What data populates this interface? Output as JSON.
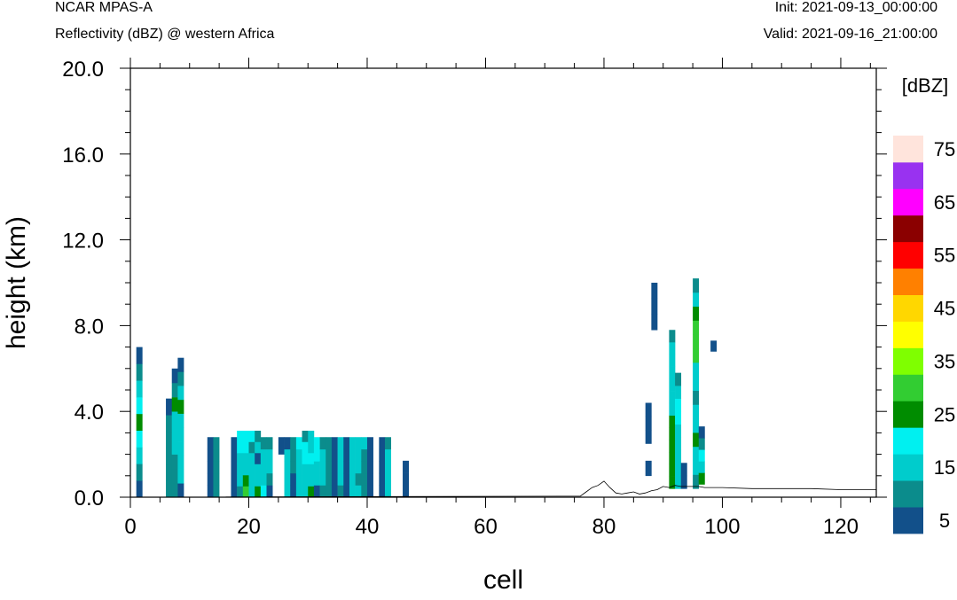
{
  "header": {
    "model": "NCAR MPAS-A",
    "field": "Reflectivity (dBZ) @ western Africa",
    "init": "Init: 2021-09-13_00:00:00",
    "valid": "Valid: 2021-09-16_21:00:00"
  },
  "chart_data": {
    "type": "heatmap",
    "title": "Reflectivity (dBZ) @ western Africa",
    "xlabel": "cell",
    "ylabel": "height (km)",
    "xlim": [
      0,
      126
    ],
    "ylim": [
      0,
      20
    ],
    "xticks": [
      "0",
      "20",
      "40",
      "60",
      "80",
      "100",
      "120"
    ],
    "yticks": [
      "0.0",
      "4.0",
      "8.0",
      "12.0",
      "16.0",
      "20.0"
    ],
    "colorbar": {
      "unit": "[dBZ]",
      "levels": [
        5,
        10,
        15,
        20,
        25,
        30,
        35,
        40,
        45,
        50,
        55,
        60,
        65,
        70,
        75
      ],
      "labels": [
        "5",
        "15",
        "25",
        "35",
        "45",
        "55",
        "65",
        "75"
      ],
      "colors": [
        "#12508a",
        "#0b8c8c",
        "#00cccc",
        "#00f0f0",
        "#008c00",
        "#32cd32",
        "#7fff00",
        "#ffff00",
        "#ffd700",
        "#ff8000",
        "#ff0000",
        "#8b0000",
        "#ff00ff",
        "#9932f0",
        "#ffe4dc"
      ]
    },
    "columns": [
      {
        "x": 1,
        "y0": 0.0,
        "y1": 7.0,
        "dbz": [
          5,
          10,
          15,
          20,
          25,
          20,
          15,
          10,
          5
        ]
      },
      {
        "x": 6,
        "y0": 0.0,
        "y1": 4.6,
        "dbz": [
          10,
          10,
          10,
          10,
          10,
          5
        ]
      },
      {
        "x": 7,
        "y0": 0.0,
        "y1": 6.0,
        "dbz": [
          10,
          10,
          10,
          15,
          15,
          15,
          25,
          10,
          5
        ]
      },
      {
        "x": 8,
        "y0": 0.0,
        "y1": 6.5,
        "dbz": [
          5,
          15,
          15,
          15,
          15,
          15,
          25,
          15,
          10,
          5
        ]
      },
      {
        "x": 13,
        "y0": 0.0,
        "y1": 2.8,
        "dbz": [
          5,
          5,
          5,
          5,
          5
        ]
      },
      {
        "x": 14,
        "y0": 0.0,
        "y1": 2.8,
        "dbz": [
          10,
          10,
          10,
          10,
          10
        ]
      },
      {
        "x": 17,
        "y0": 0.0,
        "y1": 2.8,
        "dbz": [
          5,
          5,
          5,
          5,
          5
        ]
      },
      {
        "x": 18,
        "y0": 0.0,
        "y1": 3.1,
        "dbz": [
          10,
          15,
          15,
          15,
          20,
          20
        ]
      },
      {
        "x": 19,
        "y0": 0.0,
        "y1": 3.1,
        "dbz": [
          30,
          25,
          15,
          15,
          20,
          20
        ]
      },
      {
        "x": 20,
        "y0": 0.0,
        "y1": 3.1,
        "dbz": [
          15,
          15,
          15,
          15,
          10,
          20
        ]
      },
      {
        "x": 21,
        "y0": 0.0,
        "y1": 3.1,
        "dbz": [
          25,
          15,
          15,
          5,
          15,
          10
        ]
      },
      {
        "x": 22,
        "y0": 0.0,
        "y1": 2.8,
        "dbz": [
          20,
          15,
          15,
          15,
          10
        ]
      },
      {
        "x": 23,
        "y0": 0.0,
        "y1": 2.8,
        "dbz": [
          5,
          10,
          15,
          15,
          10
        ]
      },
      {
        "x": 25,
        "y0": 2.0,
        "y1": 2.8,
        "dbz": [
          5
        ]
      },
      {
        "x": 26,
        "y0": 0.0,
        "y1": 2.8,
        "dbz": [
          15,
          15,
          15,
          15,
          5
        ]
      },
      {
        "x": 27,
        "y0": 0.0,
        "y1": 2.8,
        "dbz": [
          5,
          5,
          10,
          10,
          10
        ]
      },
      {
        "x": 28,
        "y0": 0.0,
        "y1": 2.8,
        "dbz": [
          15,
          15,
          15,
          15,
          20
        ]
      },
      {
        "x": 29,
        "y0": 0.0,
        "y1": 3.1,
        "dbz": [
          15,
          15,
          15,
          20,
          20,
          10
        ]
      },
      {
        "x": 30,
        "y0": 0.0,
        "y1": 3.1,
        "dbz": [
          25,
          15,
          15,
          20,
          15,
          15
        ]
      },
      {
        "x": 31,
        "y0": 0.0,
        "y1": 2.8,
        "dbz": [
          5,
          15,
          15,
          20,
          20
        ]
      },
      {
        "x": 32,
        "y0": 0.0,
        "y1": 2.8,
        "dbz": [
          10,
          15,
          15,
          15,
          10
        ]
      },
      {
        "x": 33,
        "y0": 0.0,
        "y1": 2.8,
        "dbz": [
          10,
          10,
          10,
          10,
          10
        ]
      },
      {
        "x": 34,
        "y0": 0.0,
        "y1": 2.8,
        "dbz": [
          5,
          5,
          5,
          5,
          5
        ]
      },
      {
        "x": 35,
        "y0": 0.0,
        "y1": 2.8,
        "dbz": [
          10,
          15,
          15,
          15,
          15
        ]
      },
      {
        "x": 36,
        "y0": 0.0,
        "y1": 2.8,
        "dbz": [
          5,
          5,
          5,
          5,
          5
        ]
      },
      {
        "x": 37,
        "y0": 0.0,
        "y1": 2.8,
        "dbz": [
          15,
          15,
          15,
          15,
          15
        ]
      },
      {
        "x": 38,
        "y0": 0.0,
        "y1": 2.8,
        "dbz": [
          15,
          10,
          15,
          15,
          15
        ]
      },
      {
        "x": 39,
        "y0": 0.0,
        "y1": 2.8,
        "dbz": [
          10,
          10,
          10,
          10,
          15
        ]
      },
      {
        "x": 40,
        "y0": 0.0,
        "y1": 2.8,
        "dbz": [
          5,
          5,
          5,
          5,
          5
        ]
      },
      {
        "x": 42,
        "y0": 0.0,
        "y1": 2.8,
        "dbz": [
          5,
          5,
          5,
          5,
          5
        ]
      },
      {
        "x": 43,
        "y0": 0.0,
        "y1": 2.8,
        "dbz": [
          15,
          15,
          15,
          15,
          10
        ]
      },
      {
        "x": 46,
        "y0": 0.0,
        "y1": 1.7,
        "dbz": [
          5,
          5,
          5
        ]
      },
      {
        "x": 87,
        "y0": 2.5,
        "y1": 4.4,
        "dbz": [
          5,
          5,
          5
        ]
      },
      {
        "x": 87,
        "y0": 1.0,
        "y1": 1.7,
        "dbz": [
          5
        ]
      },
      {
        "x": 88,
        "y0": 7.8,
        "y1": 10.0,
        "dbz": [
          5,
          5,
          5
        ]
      },
      {
        "x": 91,
        "y0": 0.4,
        "y1": 7.8,
        "dbz": [
          25,
          25,
          25,
          25,
          25,
          25,
          15,
          15,
          15,
          15,
          15,
          15,
          10
        ]
      },
      {
        "x": 92,
        "y0": 0.4,
        "y1": 5.8,
        "dbz": [
          15,
          15,
          15,
          15,
          15,
          20,
          20,
          15,
          10
        ]
      },
      {
        "x": 93,
        "y0": 0.4,
        "y1": 1.6,
        "dbz": [
          5,
          5
        ]
      },
      {
        "x": 95,
        "y0": 0.4,
        "y1": 10.2,
        "dbz": [
          10,
          15,
          15,
          25,
          15,
          15,
          10,
          15,
          15,
          30,
          30,
          30,
          25,
          15,
          10
        ]
      },
      {
        "x": 96,
        "y0": 0.6,
        "y1": 3.3,
        "dbz": [
          25,
          15,
          20,
          10,
          5
        ]
      },
      {
        "x": 98,
        "y0": 6.8,
        "y1": 7.3,
        "dbz": [
          5
        ]
      }
    ],
    "terrain": {
      "x": [
        0,
        76,
        77,
        78,
        79,
        80,
        81,
        82,
        83,
        84,
        85,
        86,
        87,
        88,
        89,
        90,
        91,
        92,
        93,
        94,
        95,
        96,
        97,
        98,
        100,
        105,
        110,
        115,
        120,
        126
      ],
      "y": [
        0.0,
        0.05,
        0.25,
        0.45,
        0.55,
        0.75,
        0.45,
        0.2,
        0.15,
        0.2,
        0.25,
        0.15,
        0.2,
        0.3,
        0.35,
        0.5,
        0.45,
        0.55,
        0.5,
        0.5,
        0.5,
        0.5,
        0.45,
        0.45,
        0.45,
        0.4,
        0.4,
        0.4,
        0.35,
        0.35
      ]
    }
  }
}
